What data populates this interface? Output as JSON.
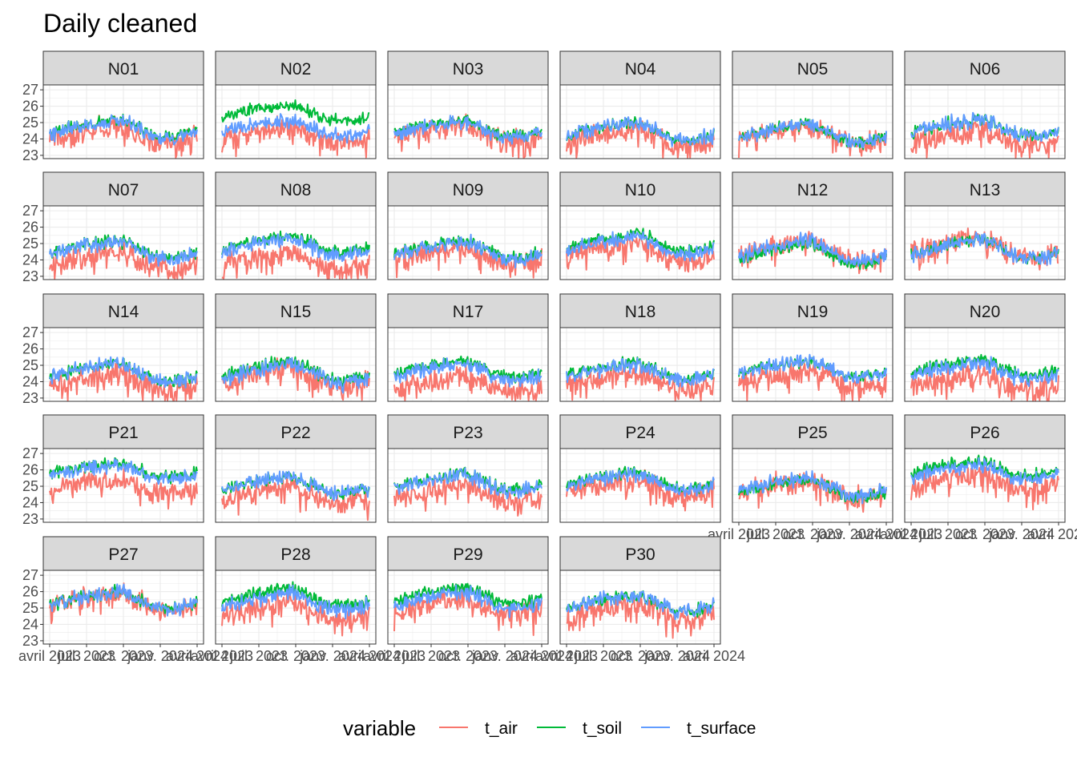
{
  "chart_data": {
    "type": "line",
    "title": "Daily cleaned",
    "xlabel": "",
    "ylabel": "",
    "x_range": [
      "2023-04-01",
      "2024-04-01"
    ],
    "x_tick_labels": [
      "avril 2023",
      "juil. 2023",
      "oct. 2023",
      "janv. 2024",
      "avril 2024"
    ],
    "ylim": [
      22.8,
      27.3
    ],
    "y_ticks": [
      23,
      24,
      25,
      26,
      27
    ],
    "y_tick_labels": [
      "23",
      "24",
      "25",
      "26",
      "27"
    ],
    "grid": true,
    "legend": {
      "title": "variable",
      "position": "bottom",
      "entries": [
        {
          "name": "t_air",
          "color": "#F8766D"
        },
        {
          "name": "t_soil",
          "color": "#00BA38"
        },
        {
          "name": "t_surface",
          "color": "#619CFF"
        }
      ]
    },
    "panels": [
      {
        "name": "N01",
        "base": 24.6,
        "air_offset": -0.3,
        "soil_offset": 0.1,
        "amplitude": 0.7
      },
      {
        "name": "N02",
        "base": 24.7,
        "air_offset": -0.4,
        "soil_offset": 0.9,
        "amplitude": 0.7
      },
      {
        "name": "N03",
        "base": 24.6,
        "air_offset": -0.2,
        "soil_offset": 0.1,
        "amplitude": 0.7
      },
      {
        "name": "N04",
        "base": 24.5,
        "air_offset": -0.4,
        "soil_offset": 0.0,
        "amplitude": 0.8
      },
      {
        "name": "N05",
        "base": 24.4,
        "air_offset": -0.1,
        "soil_offset": 0.0,
        "amplitude": 0.8
      },
      {
        "name": "N06",
        "base": 24.7,
        "air_offset": -0.6,
        "soil_offset": 0.0,
        "amplitude": 0.7
      },
      {
        "name": "N07",
        "base": 24.6,
        "air_offset": -0.6,
        "soil_offset": 0.1,
        "amplitude": 0.7
      },
      {
        "name": "N08",
        "base": 24.8,
        "air_offset": -0.8,
        "soil_offset": 0.2,
        "amplitude": 0.7
      },
      {
        "name": "N09",
        "base": 24.6,
        "air_offset": -0.3,
        "soil_offset": 0.1,
        "amplitude": 0.7
      },
      {
        "name": "N10",
        "base": 24.9,
        "air_offset": -0.4,
        "soil_offset": 0.2,
        "amplitude": 0.7
      },
      {
        "name": "N12",
        "base": 24.6,
        "air_offset": 0.0,
        "soil_offset": -0.2,
        "amplitude": 0.9
      },
      {
        "name": "N13",
        "base": 24.7,
        "air_offset": 0.1,
        "soil_offset": 0.0,
        "amplitude": 0.8
      },
      {
        "name": "N14",
        "base": 24.6,
        "air_offset": -0.6,
        "soil_offset": 0.0,
        "amplitude": 0.8
      },
      {
        "name": "N15",
        "base": 24.5,
        "air_offset": -0.2,
        "soil_offset": 0.2,
        "amplitude": 0.8
      },
      {
        "name": "N17",
        "base": 24.6,
        "air_offset": -0.7,
        "soil_offset": 0.2,
        "amplitude": 0.7
      },
      {
        "name": "N18",
        "base": 24.6,
        "air_offset": -0.5,
        "soil_offset": 0.1,
        "amplitude": 0.7
      },
      {
        "name": "N19",
        "base": 24.8,
        "air_offset": -0.6,
        "soil_offset": 0.0,
        "amplitude": 0.7
      },
      {
        "name": "N20",
        "base": 24.7,
        "air_offset": -0.7,
        "soil_offset": 0.2,
        "amplitude": 0.7
      },
      {
        "name": "P21",
        "base": 25.9,
        "air_offset": -0.9,
        "soil_offset": 0.1,
        "amplitude": 0.6
      },
      {
        "name": "P22",
        "base": 25.1,
        "air_offset": -0.6,
        "soil_offset": 0.0,
        "amplitude": 0.7
      },
      {
        "name": "P23",
        "base": 25.2,
        "air_offset": -0.6,
        "soil_offset": 0.1,
        "amplitude": 0.7
      },
      {
        "name": "P24",
        "base": 25.3,
        "air_offset": -0.3,
        "soil_offset": 0.1,
        "amplitude": 0.7
      },
      {
        "name": "P25",
        "base": 25.0,
        "air_offset": -0.1,
        "soil_offset": -0.1,
        "amplitude": 0.8
      },
      {
        "name": "P26",
        "base": 25.9,
        "air_offset": -0.6,
        "soil_offset": 0.2,
        "amplitude": 0.6
      },
      {
        "name": "P27",
        "base": 25.5,
        "air_offset": -0.1,
        "soil_offset": 0.0,
        "amplitude": 0.7
      },
      {
        "name": "P28",
        "base": 25.4,
        "air_offset": -0.6,
        "soil_offset": 0.3,
        "amplitude": 0.7
      },
      {
        "name": "P29",
        "base": 25.5,
        "air_offset": -0.4,
        "soil_offset": 0.3,
        "amplitude": 0.7
      },
      {
        "name": "P30",
        "base": 25.3,
        "air_offset": -0.5,
        "soil_offset": 0.0,
        "amplitude": 0.7
      }
    ]
  }
}
